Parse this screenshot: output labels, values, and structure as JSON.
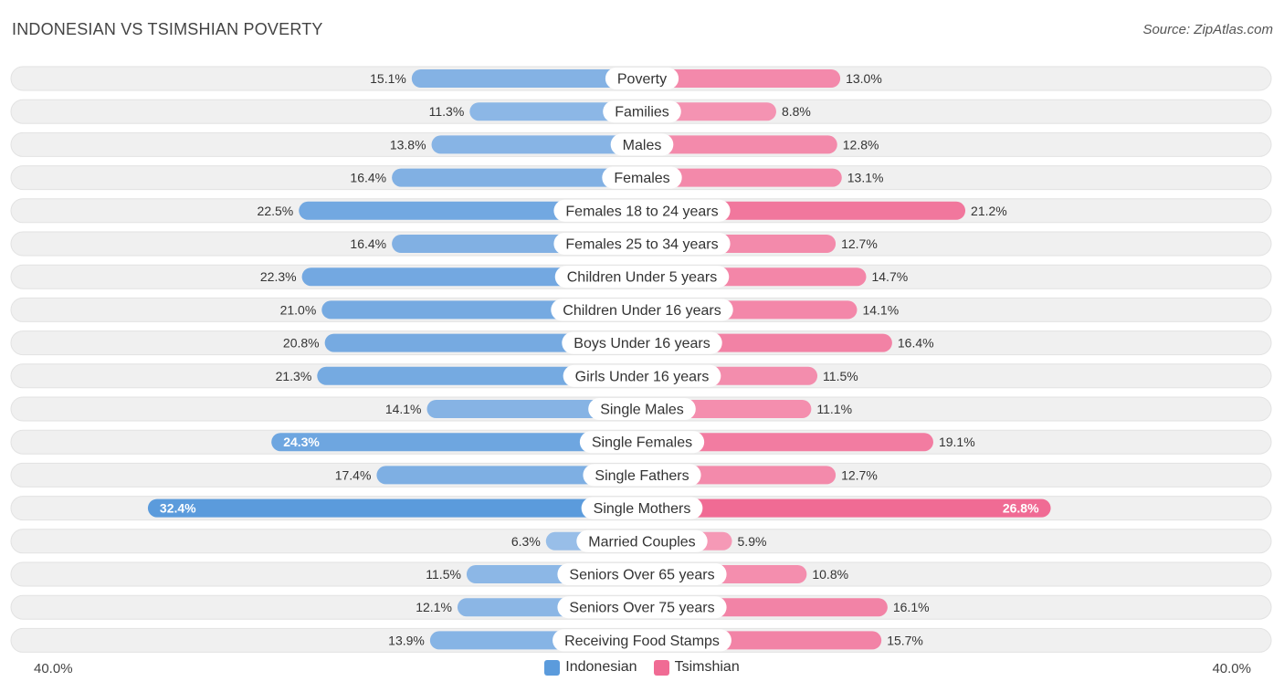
{
  "header": {
    "title": "INDONESIAN VS TSIMSHIAN POVERTY",
    "source": "Source: ZipAtlas.com"
  },
  "colors": {
    "indonesian": "#5b9bdc",
    "indonesian_light": "#a7c6eb",
    "tsimshian": "#f06b94",
    "tsimshian_light": "#f6a6c0",
    "track": "#f0f0f0"
  },
  "chart_data": {
    "type": "bar",
    "orientation": "horizontal-diverging",
    "title": "INDONESIAN VS TSIMSHIAN POVERTY",
    "axis_max": 40.0,
    "axis_left_label": "40.0%",
    "axis_right_label": "40.0%",
    "legend": [
      "Indonesian",
      "Tsimshian"
    ],
    "categories": [
      "Poverty",
      "Families",
      "Males",
      "Females",
      "Females 18 to 24 years",
      "Females 25 to 34 years",
      "Children Under 5 years",
      "Children Under 16 years",
      "Boys Under 16 years",
      "Girls Under 16 years",
      "Single Males",
      "Single Females",
      "Single Fathers",
      "Single Mothers",
      "Married Couples",
      "Seniors Over 65 years",
      "Seniors Over 75 years",
      "Receiving Food Stamps"
    ],
    "series": [
      {
        "name": "Indonesian",
        "values": [
          15.1,
          11.3,
          13.8,
          16.4,
          22.5,
          16.4,
          22.3,
          21.0,
          20.8,
          21.3,
          14.1,
          24.3,
          17.4,
          32.4,
          6.3,
          11.5,
          12.1,
          13.9
        ],
        "labels": [
          "15.1%",
          "11.3%",
          "13.8%",
          "16.4%",
          "22.5%",
          "16.4%",
          "22.3%",
          "21.0%",
          "20.8%",
          "21.3%",
          "14.1%",
          "24.3%",
          "17.4%",
          "32.4%",
          "6.3%",
          "11.5%",
          "12.1%",
          "13.9%"
        ]
      },
      {
        "name": "Tsimshian",
        "values": [
          13.0,
          8.8,
          12.8,
          13.1,
          21.2,
          12.7,
          14.7,
          14.1,
          16.4,
          11.5,
          11.1,
          19.1,
          12.7,
          26.8,
          5.9,
          10.8,
          16.1,
          15.7
        ],
        "labels": [
          "13.0%",
          "8.8%",
          "12.8%",
          "13.1%",
          "21.2%",
          "12.7%",
          "14.7%",
          "14.1%",
          "16.4%",
          "11.5%",
          "11.1%",
          "19.1%",
          "12.7%",
          "26.8%",
          "5.9%",
          "10.8%",
          "16.1%",
          "15.7%"
        ]
      }
    ]
  }
}
